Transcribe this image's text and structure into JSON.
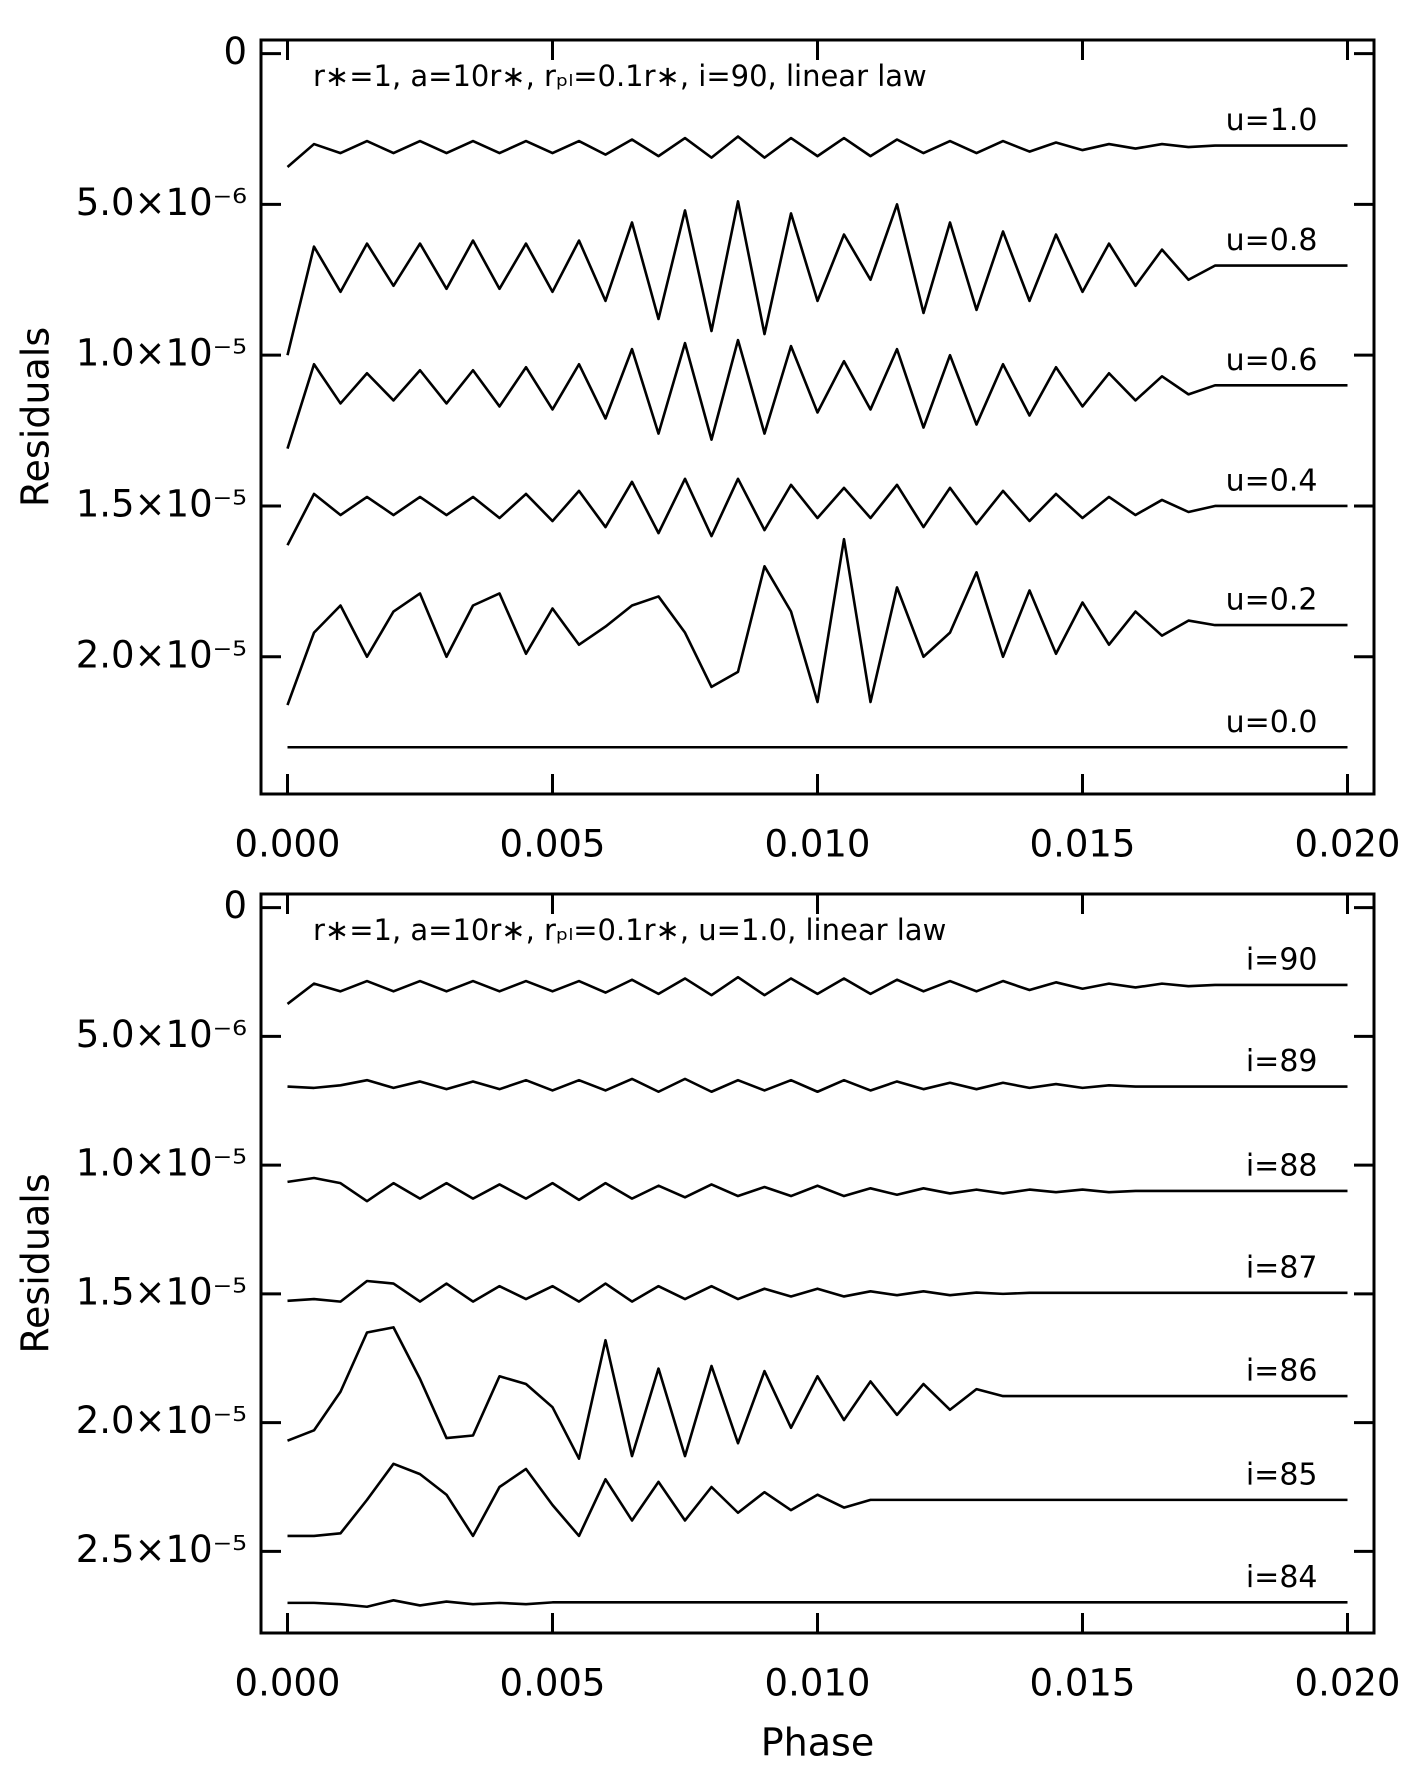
{
  "chart_data": [
    {
      "type": "line",
      "annotation": "r∗=1, a=10r∗, rₚₗ=0.1r∗, i=90, linear law",
      "y_label": "Residuals",
      "xlim": [
        -0.0005,
        0.0205
      ],
      "xticks": [
        {
          "value": 0,
          "label": "0.000"
        },
        {
          "value": 0.005,
          "label": "0.005"
        },
        {
          "value": 0.01,
          "label": "0.010"
        },
        {
          "value": 0.015,
          "label": "0.015"
        },
        {
          "value": 0.02,
          "label": "0.020"
        }
      ],
      "ylim": [
        -4.5e-07,
        2.455e-05
      ],
      "yticks": [
        0,
        {
          "value": 5e-06,
          "label": "5.0×10⁻⁶"
        },
        {
          "value": 1e-05,
          "label": "1.0×10⁻⁵"
        },
        {
          "value": 1.5e-05,
          "label": "1.5×10⁻⁵"
        },
        {
          "value": 2e-05,
          "label": "2.0×10⁻⁵"
        }
      ],
      "y_inverted": true,
      "x": [
        0,
        0.0005,
        0.001,
        0.0015,
        0.002,
        0.0025,
        0.003,
        0.0035,
        0.004,
        0.0045,
        0.005,
        0.0055,
        0.006,
        0.0065,
        0.007,
        0.0075,
        0.008,
        0.0085,
        0.009,
        0.0095,
        0.01,
        0.0105,
        0.011,
        0.0115,
        0.012,
        0.0125,
        0.013,
        0.0135,
        0.014,
        0.0145,
        0.015,
        0.0155,
        0.016,
        0.0165,
        0.017,
        0.0175,
        0.018,
        0.0185,
        0.019,
        0.0195,
        0.02
      ],
      "series": [
        {
          "name": "u=1.0",
          "color": "#000000",
          "values": [
            3.76e-06,
            3e-06,
            3.3e-06,
            2.9e-06,
            3.3e-06,
            2.9e-06,
            3.3e-06,
            2.9e-06,
            3.3e-06,
            2.9e-06,
            3.3e-06,
            2.9e-06,
            3.35e-06,
            2.85e-06,
            3.4e-06,
            2.8e-06,
            3.45e-06,
            2.75e-06,
            3.45e-06,
            2.8e-06,
            3.4e-06,
            2.8e-06,
            3.4e-06,
            2.85e-06,
            3.3e-06,
            2.9e-06,
            3.3e-06,
            2.9e-06,
            3.25e-06,
            2.95e-06,
            3.2e-06,
            3e-06,
            3.15e-06,
            3e-06,
            3.1e-06,
            3.05e-06,
            3.05e-06,
            3.05e-06,
            3.05e-06,
            3.05e-06,
            3.05e-06
          ]
        },
        {
          "name": "u=0.8",
          "color": "#000000",
          "values": [
            1e-05,
            6.4e-06,
            7.9e-06,
            6.3e-06,
            7.7e-06,
            6.3e-06,
            7.8e-06,
            6.2e-06,
            7.8e-06,
            6.3e-06,
            7.9e-06,
            6.2e-06,
            8.2e-06,
            5.6e-06,
            8.8e-06,
            5.2e-06,
            9.2e-06,
            4.9e-06,
            9.3e-06,
            5.3e-06,
            8.2e-06,
            6e-06,
            7.5e-06,
            5e-06,
            8.6e-06,
            5.6e-06,
            8.5e-06,
            5.9e-06,
            8.2e-06,
            6e-06,
            7.9e-06,
            6.3e-06,
            7.7e-06,
            6.5e-06,
            7.5e-06,
            7.03e-06,
            7.03e-06,
            7.03e-06,
            7.03e-06,
            7.03e-06,
            7.03e-06
          ]
        },
        {
          "name": "u=0.6",
          "color": "#000000",
          "values": [
            1.31e-05,
            1.03e-05,
            1.16e-05,
            1.06e-05,
            1.15e-05,
            1.05e-05,
            1.16e-05,
            1.05e-05,
            1.17e-05,
            1.04e-05,
            1.18e-05,
            1.03e-05,
            1.21e-05,
            9.8e-06,
            1.26e-05,
            9.6e-06,
            1.28e-05,
            9.5e-06,
            1.26e-05,
            9.7e-06,
            1.19e-05,
            1.02e-05,
            1.18e-05,
            9.8e-06,
            1.24e-05,
            1e-05,
            1.23e-05,
            1.03e-05,
            1.2e-05,
            1.04e-05,
            1.17e-05,
            1.06e-05,
            1.15e-05,
            1.07e-05,
            1.13e-05,
            1.1e-05,
            1.1e-05,
            1.1e-05,
            1.1e-05,
            1.1e-05,
            1.1e-05
          ]
        },
        {
          "name": "u=0.4",
          "color": "#000000",
          "values": [
            1.63e-05,
            1.46e-05,
            1.53e-05,
            1.47e-05,
            1.53e-05,
            1.47e-05,
            1.53e-05,
            1.47e-05,
            1.54e-05,
            1.46e-05,
            1.55e-05,
            1.45e-05,
            1.57e-05,
            1.42e-05,
            1.59e-05,
            1.41e-05,
            1.6e-05,
            1.41e-05,
            1.58e-05,
            1.43e-05,
            1.54e-05,
            1.44e-05,
            1.54e-05,
            1.43e-05,
            1.57e-05,
            1.44e-05,
            1.56e-05,
            1.45e-05,
            1.55e-05,
            1.46e-05,
            1.54e-05,
            1.47e-05,
            1.53e-05,
            1.48e-05,
            1.52e-05,
            1.5e-05,
            1.5e-05,
            1.5e-05,
            1.5e-05,
            1.5e-05,
            1.5e-05
          ]
        },
        {
          "name": "u=0.2",
          "color": "#000000",
          "values": [
            2.16e-05,
            1.92e-05,
            1.83e-05,
            2e-05,
            1.85e-05,
            1.79e-05,
            2e-05,
            1.83e-05,
            1.79e-05,
            1.99e-05,
            1.84e-05,
            1.96e-05,
            1.9e-05,
            1.83e-05,
            1.8e-05,
            1.92e-05,
            2.1e-05,
            2.05e-05,
            1.7e-05,
            1.85e-05,
            2.15e-05,
            1.61e-05,
            2.15e-05,
            1.77e-05,
            2e-05,
            1.92e-05,
            1.72e-05,
            2e-05,
            1.78e-05,
            1.99e-05,
            1.82e-05,
            1.96e-05,
            1.85e-05,
            1.93e-05,
            1.88e-05,
            1.895e-05,
            1.895e-05,
            1.895e-05,
            1.895e-05,
            1.895e-05,
            1.895e-05
          ]
        },
        {
          "name": "u=0.0",
          "color": "#000000",
          "values": [
            2.3e-05,
            2.3e-05,
            2.3e-05,
            2.3e-05,
            2.3e-05,
            2.3e-05,
            2.3e-05,
            2.3e-05,
            2.3e-05,
            2.3e-05,
            2.3e-05,
            2.3e-05,
            2.3e-05,
            2.3e-05,
            2.3e-05,
            2.3e-05,
            2.3e-05,
            2.3e-05,
            2.3e-05,
            2.3e-05,
            2.3e-05,
            2.3e-05,
            2.3e-05,
            2.3e-05,
            2.3e-05,
            2.3e-05,
            2.3e-05,
            2.3e-05,
            2.3e-05,
            2.3e-05,
            2.3e-05,
            2.3e-05,
            2.3e-05,
            2.3e-05,
            2.3e-05,
            2.3e-05,
            2.3e-05,
            2.3e-05,
            2.3e-05,
            2.3e-05,
            2.3e-05
          ]
        }
      ]
    },
    {
      "type": "line",
      "annotation": "r∗=1, a=10r∗, rₚₗ=0.1r∗, u=1.0, linear law",
      "x_label": "Phase",
      "y_label": "Residuals",
      "xlim": [
        -0.0005,
        0.0205
      ],
      "xticks": [
        {
          "value": 0,
          "label": "0.000"
        },
        {
          "value": 0.005,
          "label": "0.005"
        },
        {
          "value": 0.01,
          "label": "0.010"
        },
        {
          "value": 0.015,
          "label": "0.015"
        },
        {
          "value": 0.02,
          "label": "0.020"
        }
      ],
      "ylim": [
        -5.3e-07,
        2.817e-05
      ],
      "yticks": [
        0,
        {
          "value": 5e-06,
          "label": "5.0×10⁻⁶"
        },
        {
          "value": 1e-05,
          "label": "1.0×10⁻⁵"
        },
        {
          "value": 1.5e-05,
          "label": "1.5×10⁻⁵"
        },
        {
          "value": 2e-05,
          "label": "2.0×10⁻⁵"
        },
        {
          "value": 2.5e-05,
          "label": "2.5×10⁻⁵"
        }
      ],
      "y_inverted": true,
      "x": [
        0,
        0.0005,
        0.001,
        0.0015,
        0.002,
        0.0025,
        0.003,
        0.0035,
        0.004,
        0.0045,
        0.005,
        0.0055,
        0.006,
        0.0065,
        0.007,
        0.0075,
        0.008,
        0.0085,
        0.009,
        0.0095,
        0.01,
        0.0105,
        0.011,
        0.0115,
        0.012,
        0.0125,
        0.013,
        0.0135,
        0.014,
        0.0145,
        0.015,
        0.0155,
        0.016,
        0.0165,
        0.017,
        0.0175,
        0.018,
        0.0185,
        0.019,
        0.0195,
        0.02
      ],
      "series": [
        {
          "name": "i=90",
          "color": "#000000",
          "values": [
            3.74e-06,
            2.95e-06,
            3.25e-06,
            2.85e-06,
            3.25e-06,
            2.85e-06,
            3.25e-06,
            2.85e-06,
            3.25e-06,
            2.85e-06,
            3.25e-06,
            2.85e-06,
            3.3e-06,
            2.8e-06,
            3.35e-06,
            2.75e-06,
            3.4e-06,
            2.7e-06,
            3.4e-06,
            2.75e-06,
            3.35e-06,
            2.75e-06,
            3.35e-06,
            2.8e-06,
            3.25e-06,
            2.85e-06,
            3.25e-06,
            2.85e-06,
            3.2e-06,
            2.9e-06,
            3.15e-06,
            2.95e-06,
            3.1e-06,
            2.95e-06,
            3.05e-06,
            3e-06,
            3e-06,
            3e-06,
            3e-06,
            3e-06,
            3e-06
          ]
        },
        {
          "name": "i=89",
          "color": "#000000",
          "values": [
            6.95e-06,
            7e-06,
            6.9e-06,
            6.7e-06,
            7e-06,
            6.75e-06,
            7.05e-06,
            6.75e-06,
            7.05e-06,
            6.7e-06,
            7.1e-06,
            6.7e-06,
            7.1e-06,
            6.65e-06,
            7.15e-06,
            6.65e-06,
            7.15e-06,
            6.7e-06,
            7.1e-06,
            6.7e-06,
            7.15e-06,
            6.7e-06,
            7.1e-06,
            6.75e-06,
            7.05e-06,
            6.8e-06,
            7.05e-06,
            6.8e-06,
            7e-06,
            6.85e-06,
            7e-06,
            6.9e-06,
            6.95e-06,
            6.95e-06,
            6.95e-06,
            6.95e-06,
            6.95e-06,
            6.95e-06,
            6.95e-06,
            6.95e-06,
            6.95e-06
          ]
        },
        {
          "name": "i=88",
          "color": "#000000",
          "values": [
            1.065e-05,
            1.05e-05,
            1.07e-05,
            1.14e-05,
            1.07e-05,
            1.13e-05,
            1.07e-05,
            1.13e-05,
            1.075e-05,
            1.13e-05,
            1.07e-05,
            1.135e-05,
            1.07e-05,
            1.13e-05,
            1.08e-05,
            1.125e-05,
            1.075e-05,
            1.12e-05,
            1.085e-05,
            1.12e-05,
            1.08e-05,
            1.12e-05,
            1.09e-05,
            1.115e-05,
            1.09e-05,
            1.11e-05,
            1.095e-05,
            1.11e-05,
            1.095e-05,
            1.105e-05,
            1.095e-05,
            1.105e-05,
            1.1e-05,
            1.1e-05,
            1.1e-05,
            1.1e-05,
            1.1e-05,
            1.1e-05,
            1.1e-05,
            1.1e-05,
            1.1e-05
          ]
        },
        {
          "name": "i=87",
          "color": "#000000",
          "values": [
            1.527e-05,
            1.52e-05,
            1.53e-05,
            1.45e-05,
            1.46e-05,
            1.53e-05,
            1.46e-05,
            1.53e-05,
            1.47e-05,
            1.52e-05,
            1.47e-05,
            1.53e-05,
            1.46e-05,
            1.53e-05,
            1.47e-05,
            1.52e-05,
            1.47e-05,
            1.52e-05,
            1.48e-05,
            1.51e-05,
            1.48e-05,
            1.51e-05,
            1.49e-05,
            1.505e-05,
            1.49e-05,
            1.505e-05,
            1.495e-05,
            1.5e-05,
            1.496e-05,
            1.496e-05,
            1.496e-05,
            1.496e-05,
            1.496e-05,
            1.496e-05,
            1.496e-05,
            1.496e-05,
            1.496e-05,
            1.496e-05,
            1.496e-05,
            1.496e-05,
            1.496e-05
          ]
        },
        {
          "name": "i=86",
          "color": "#000000",
          "values": [
            2.07e-05,
            2.03e-05,
            1.88e-05,
            1.65e-05,
            1.63e-05,
            1.83e-05,
            2.06e-05,
            2.05e-05,
            1.82e-05,
            1.85e-05,
            1.94e-05,
            2.14e-05,
            1.68e-05,
            2.13e-05,
            1.79e-05,
            2.13e-05,
            1.78e-05,
            2.08e-05,
            1.8e-05,
            2.02e-05,
            1.82e-05,
            1.99e-05,
            1.84e-05,
            1.97e-05,
            1.85e-05,
            1.95e-05,
            1.87e-05,
            1.897e-05,
            1.897e-05,
            1.897e-05,
            1.897e-05,
            1.897e-05,
            1.897e-05,
            1.897e-05,
            1.897e-05,
            1.897e-05,
            1.897e-05,
            1.897e-05,
            1.897e-05,
            1.897e-05,
            1.897e-05
          ]
        },
        {
          "name": "i=85",
          "color": "#000000",
          "values": [
            2.44e-05,
            2.44e-05,
            2.43e-05,
            2.3e-05,
            2.16e-05,
            2.2e-05,
            2.28e-05,
            2.44e-05,
            2.25e-05,
            2.18e-05,
            2.32e-05,
            2.44e-05,
            2.22e-05,
            2.38e-05,
            2.23e-05,
            2.38e-05,
            2.25e-05,
            2.35e-05,
            2.27e-05,
            2.34e-05,
            2.28e-05,
            2.33e-05,
            2.3e-05,
            2.3e-05,
            2.3e-05,
            2.3e-05,
            2.3e-05,
            2.3e-05,
            2.3e-05,
            2.3e-05,
            2.3e-05,
            2.3e-05,
            2.3e-05,
            2.3e-05,
            2.3e-05,
            2.3e-05,
            2.3e-05,
            2.3e-05,
            2.3e-05,
            2.3e-05,
            2.3e-05
          ]
        },
        {
          "name": "i=84",
          "color": "#000000",
          "values": [
            2.7e-05,
            2.7e-05,
            2.705e-05,
            2.715e-05,
            2.69e-05,
            2.71e-05,
            2.695e-05,
            2.705e-05,
            2.7e-05,
            2.705e-05,
            2.698e-05,
            2.698e-05,
            2.698e-05,
            2.698e-05,
            2.698e-05,
            2.698e-05,
            2.698e-05,
            2.698e-05,
            2.698e-05,
            2.698e-05,
            2.698e-05,
            2.698e-05,
            2.698e-05,
            2.698e-05,
            2.698e-05,
            2.698e-05,
            2.698e-05,
            2.698e-05,
            2.698e-05,
            2.698e-05,
            2.698e-05,
            2.698e-05,
            2.698e-05,
            2.698e-05,
            2.698e-05,
            2.698e-05,
            2.698e-05,
            2.698e-05,
            2.698e-05,
            2.698e-05,
            2.698e-05
          ]
        }
      ]
    }
  ]
}
